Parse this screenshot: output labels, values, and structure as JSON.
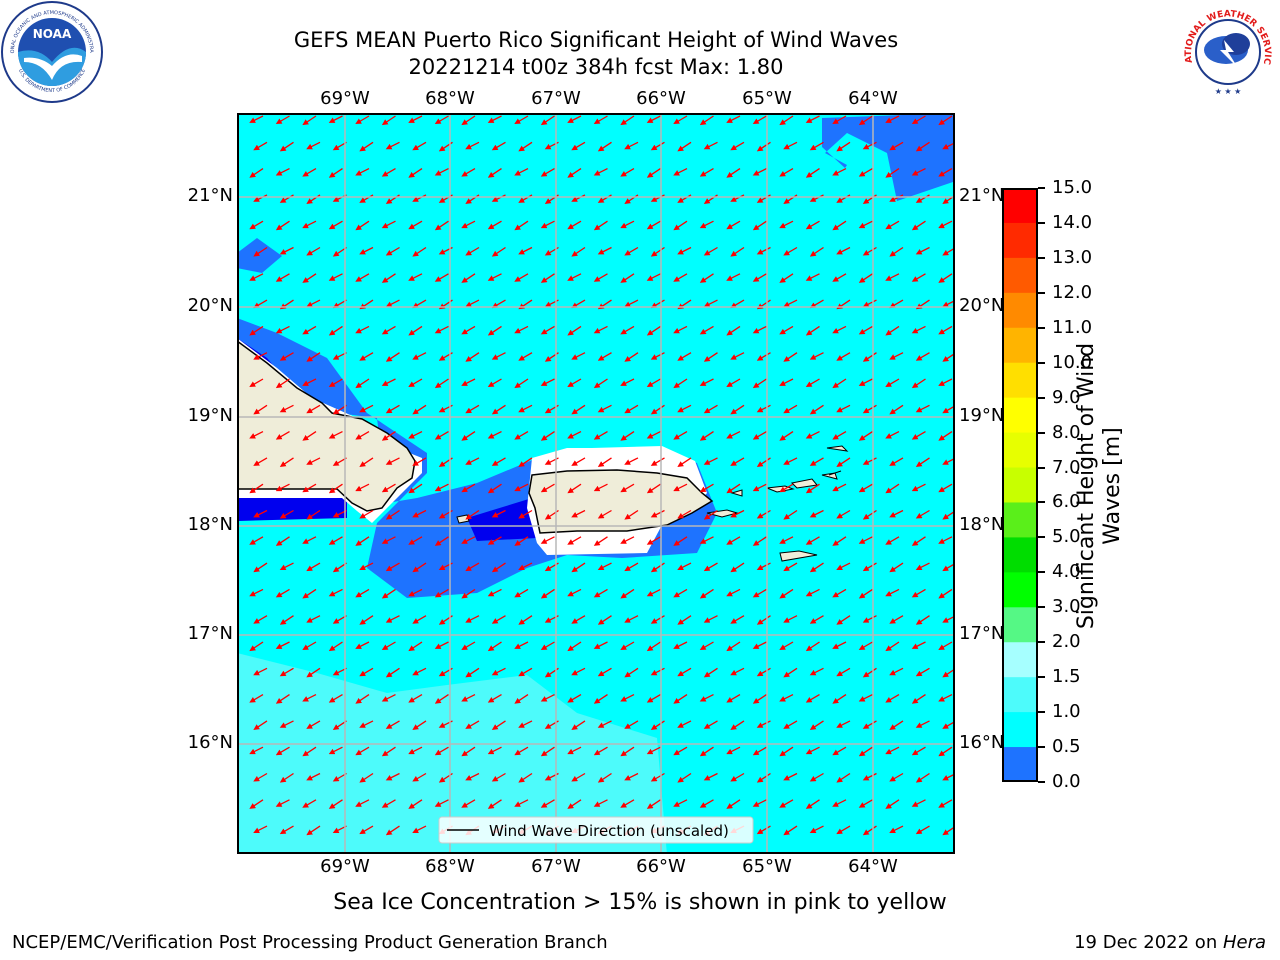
{
  "title": {
    "line1": "GEFS MEAN Puerto Rico Significant Height of Wind Waves",
    "line2": "20221214 t00z 384h fcst   Max: 1.80"
  },
  "map": {
    "lon_ticks": [
      "69°W",
      "68°W",
      "67°W",
      "66°W",
      "65°W",
      "64°W"
    ],
    "lat_ticks": [
      "21°N",
      "20°N",
      "19°N",
      "18°N",
      "17°N",
      "16°N"
    ],
    "legend_label": "Wind Wave Direction (unscaled)",
    "colors": {
      "ocean_1_1_5": "#00ffff",
      "band_0_5_1": "#1e73ff",
      "band_0_0_5": "#0000ee",
      "band_1_5_2": "#4dfbfb",
      "band_2_3": "#a6ffff",
      "land": "#efedd9",
      "arrows": "#ff0000",
      "grid": "#b8b8b8"
    },
    "arrow_direction": "southwest"
  },
  "colorbar": {
    "label": "Significant Height of Wind Waves [m]",
    "label_line1": "Significant Height of Wind",
    "label_line2": "Waves [m]",
    "ticks": [
      "15.0",
      "14.0",
      "13.0",
      "12.0",
      "11.0",
      "10.0",
      "9.0",
      "8.0",
      "7.0",
      "6.0",
      "5.0",
      "4.0",
      "3.0",
      "2.0",
      "1.5",
      "1.0",
      "0.5",
      "0.0"
    ],
    "colors": [
      "#ff0000",
      "#ff2a00",
      "#ff5a00",
      "#ff8a00",
      "#ffb400",
      "#ffdf00",
      "#ffff00",
      "#e7ff00",
      "#c8ff00",
      "#5aef1a",
      "#00dd00",
      "#00ff00",
      "#55f885",
      "#a6ffff",
      "#4dfbfb",
      "#00ffff",
      "#1e73ff",
      "#0000ff"
    ]
  },
  "note": "Sea Ice Concentration > 15% is shown in pink to yellow",
  "footer": {
    "left": "NCEP/EMC/Verification Post Processing Product Generation Branch",
    "right_prefix": "19 Dec 2022 on ",
    "right_host": "Hera"
  },
  "logos": {
    "noaa_text": "NOAA",
    "noaa_ring": "NATIONAL OCEANIC AND ATMOSPHERIC ADMINISTRATION",
    "noaa_ring_bottom": "U.S. DEPARTMENT OF COMMERCE",
    "nws_ring": "NATIONAL WEATHER SERVICE"
  }
}
